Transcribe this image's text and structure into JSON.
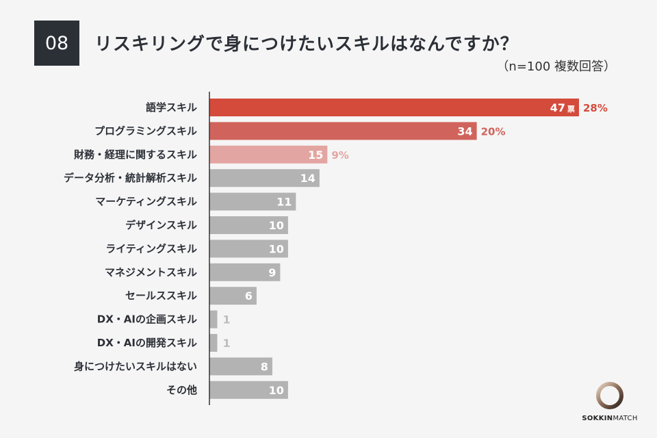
{
  "question": {
    "number": "08",
    "title": "リスキリングで身につけたいスキルはなんですか？",
    "subtitle": "（n=100 複数回答）"
  },
  "colors": {
    "top1": "#d44b3c",
    "top2": "#d0645c",
    "top3": "#e3a5a1",
    "other": "#b3b3b3",
    "top1_pct": "#d44b3c",
    "top2_pct": "#d0645c",
    "top3_pct": "#e3a5a1",
    "label_text": "#2b2f36",
    "axis": "#333333"
  },
  "chart_data": {
    "type": "bar",
    "orientation": "horizontal",
    "categories": [
      "語学スキル",
      "プログラミングスキル",
      "財務・経理に関するスキル",
      "データ分析・統計解析スキル",
      "マーケティングスキル",
      "デザインスキル",
      "ライティングスキル",
      "マネジメントスキル",
      "セールススキル",
      "DX・AIの企画スキル",
      "DX・AIの開発スキル",
      "身につけたいスキルはない",
      "その他"
    ],
    "values": [
      47,
      34,
      15,
      14,
      11,
      10,
      10,
      9,
      6,
      1,
      1,
      8,
      10
    ],
    "value_unit_first": "票",
    "percent_labels": [
      "28%",
      "20%",
      "9%"
    ],
    "xlim": [
      0,
      47
    ]
  },
  "logo": {
    "text_bold": "SOKKIN",
    "text_regular": "MATCH"
  }
}
